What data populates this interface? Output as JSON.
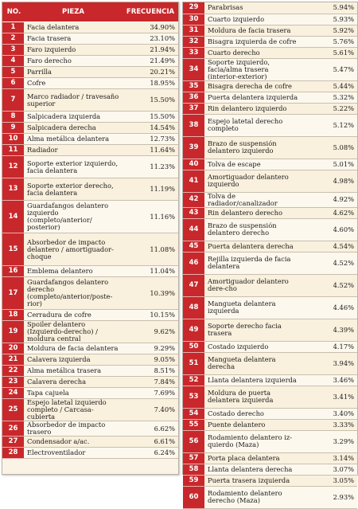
{
  "headers": {
    "no": "NO.",
    "pieza": "PIEZA",
    "frecuencia": "FRECUENCIA"
  },
  "left_rows": [
    {
      "no": "1",
      "pieza": "Facia delantera",
      "freq": "34.90%"
    },
    {
      "no": "2",
      "pieza": "Facia trasera",
      "freq": "23.10%"
    },
    {
      "no": "3",
      "pieza": "Faro izquierdo",
      "freq": "21.94%"
    },
    {
      "no": "4",
      "pieza": "Faro derecho",
      "freq": "21.49%"
    },
    {
      "no": "5",
      "pieza": "Parrilla",
      "freq": "20.21%"
    },
    {
      "no": "6",
      "pieza": "Cofre",
      "freq": "18.95%"
    },
    {
      "no": "7",
      "pieza": "Marco radiador / travesaño superior",
      "freq": "15.50%"
    },
    {
      "no": "8",
      "pieza": "Salpicadera izquierda",
      "freq": "15.50%"
    },
    {
      "no": "9",
      "pieza": "Salpicadera derecha",
      "freq": "14.54%"
    },
    {
      "no": "10",
      "pieza": "Alma metálica delantera",
      "freq": "12.73%"
    },
    {
      "no": "11",
      "pieza": "Radiador",
      "freq": "11.64%"
    },
    {
      "no": "12",
      "pieza": "Soporte exterior izquierdo, facia delantera",
      "freq": "11.23%"
    },
    {
      "no": "13",
      "pieza": "Soporte exterior derecho, facia delantera",
      "freq": "11.19%"
    },
    {
      "no": "14",
      "pieza": "Guardafangos delantero izquierdo (completo/anterior/ posterior)",
      "freq": "11.16%"
    },
    {
      "no": "15",
      "pieza": "Absorbedor de impacto delantero / amortiguador-choque",
      "freq": "11.08%"
    },
    {
      "no": "16",
      "pieza": "Emblema delantero",
      "freq": "11.04%"
    },
    {
      "no": "17",
      "pieza": "Guardafangos delantero derecho (completo/anterior/poste-rior)",
      "freq": "10.39%"
    },
    {
      "no": "18",
      "pieza": "Cerradura de cofre",
      "freq": "10.15%"
    },
    {
      "no": "19",
      "pieza": "Spoiler delantero (Izquierdo-derecho) / moldura central",
      "freq": "9.62%"
    },
    {
      "no": "20",
      "pieza": "Moldura de facia delantera",
      "freq": "9.29%"
    },
    {
      "no": "21",
      "pieza": "Calavera izquierda",
      "freq": "9.05%"
    },
    {
      "no": "22",
      "pieza": "Alma metálica trasera",
      "freq": "8.51%"
    },
    {
      "no": "23",
      "pieza": "Calavera derecha",
      "freq": "7.84%"
    },
    {
      "no": "24",
      "pieza": "Tapa cajuela",
      "freq": "7.69%"
    },
    {
      "no": "25",
      "pieza": "Espejo latetal izquierdo completo / Carcasa-cubierta",
      "freq": "7.40%"
    },
    {
      "no": "26",
      "pieza": "Absorbedor de impacto trasero",
      "freq": "6.62%"
    },
    {
      "no": "27",
      "pieza": "Condensador a/ac.",
      "freq": "6.61%"
    },
    {
      "no": "28",
      "pieza": "Electroventilador",
      "freq": "6.24%"
    }
  ],
  "right_rows": [
    {
      "no": "29",
      "pieza": "Parabrisas",
      "freq": "5.94%"
    },
    {
      "no": "30",
      "pieza": "Cuarto izquierdo",
      "freq": "5.93%"
    },
    {
      "no": "31",
      "pieza": "Moldura de facia trasera",
      "freq": "5.92%"
    },
    {
      "no": "32",
      "pieza": "Bisagra izquierda de cofre",
      "freq": "5.76%"
    },
    {
      "no": "33",
      "pieza": "Cuarto derecho",
      "freq": "5.61%"
    },
    {
      "no": "34",
      "pieza": "Soporte izquierdo, facia/alma trasera (interior-exterior)",
      "freq": "5.47%"
    },
    {
      "no": "35",
      "pieza": "Bisagra derecha de cofre",
      "freq": "5.44%"
    },
    {
      "no": "36",
      "pieza": "Puerta delantera izquierda",
      "freq": "5.32%"
    },
    {
      "no": "37",
      "pieza": "Rin delantero izquierdo",
      "freq": "5.22%"
    },
    {
      "no": "38",
      "pieza": "Espejo latetal derecho completo",
      "freq": "5.12%"
    },
    {
      "no": "39",
      "pieza": "Brazo de suspensión delantero izquierdo",
      "freq": "5.08%"
    },
    {
      "no": "40",
      "pieza": "Tolva de escape",
      "freq": "5.01%"
    },
    {
      "no": "41",
      "pieza": "Amortiguador delantero izquierdo",
      "freq": "4.98%"
    },
    {
      "no": "42",
      "pieza": "Tolva de radiador/canalizador",
      "freq": "4.92%"
    },
    {
      "no": "43",
      "pieza": "Rin delantero derecho",
      "freq": "4.62%"
    },
    {
      "no": "44",
      "pieza": "Brazo de suspensión delantero derecho",
      "freq": "4.60%"
    },
    {
      "no": "45",
      "pieza": "Puerta delantera derecha",
      "freq": "4.54%"
    },
    {
      "no": "46",
      "pieza": "Rejilla izquierda de facia delantera",
      "freq": "4.52%"
    },
    {
      "no": "47",
      "pieza": "Amortiguador delantero dere-cho",
      "freq": "4.52%"
    },
    {
      "no": "48",
      "pieza": "Mangueta delantera izquierda",
      "freq": "4.46%"
    },
    {
      "no": "49",
      "pieza": "Soporte derecho facia trasera",
      "freq": "4.39%"
    },
    {
      "no": "50",
      "pieza": "Costado izquierdo",
      "freq": "4.17%"
    },
    {
      "no": "51",
      "pieza": "Mangueta delantera derecha",
      "freq": "3.94%"
    },
    {
      "no": "52",
      "pieza": "Llanta delantera izquierda",
      "freq": "3.46%"
    },
    {
      "no": "53",
      "pieza": "Moldura de puerta delantera izquierda",
      "freq": "3.41%"
    },
    {
      "no": "54",
      "pieza": "Costado derecho",
      "freq": "3.40%"
    },
    {
      "no": "55",
      "pieza": "Puente delantero",
      "freq": "3.33%"
    },
    {
      "no": "56",
      "pieza": "Rodamiento delantero iz-quierdo (Maza)",
      "freq": "3.29%"
    },
    {
      "no": "57",
      "pieza": "Porta placa delantera",
      "freq": "3.14%"
    },
    {
      "no": "58",
      "pieza": "Llanta delantera derecha",
      "freq": "3.07%"
    },
    {
      "no": "59",
      "pieza": "Puerta trasera izquierda",
      "freq": "3.05%"
    },
    {
      "no": "60",
      "pieza": "Rodamiento delantero derecho (Maza)",
      "freq": "2.93%"
    }
  ]
}
